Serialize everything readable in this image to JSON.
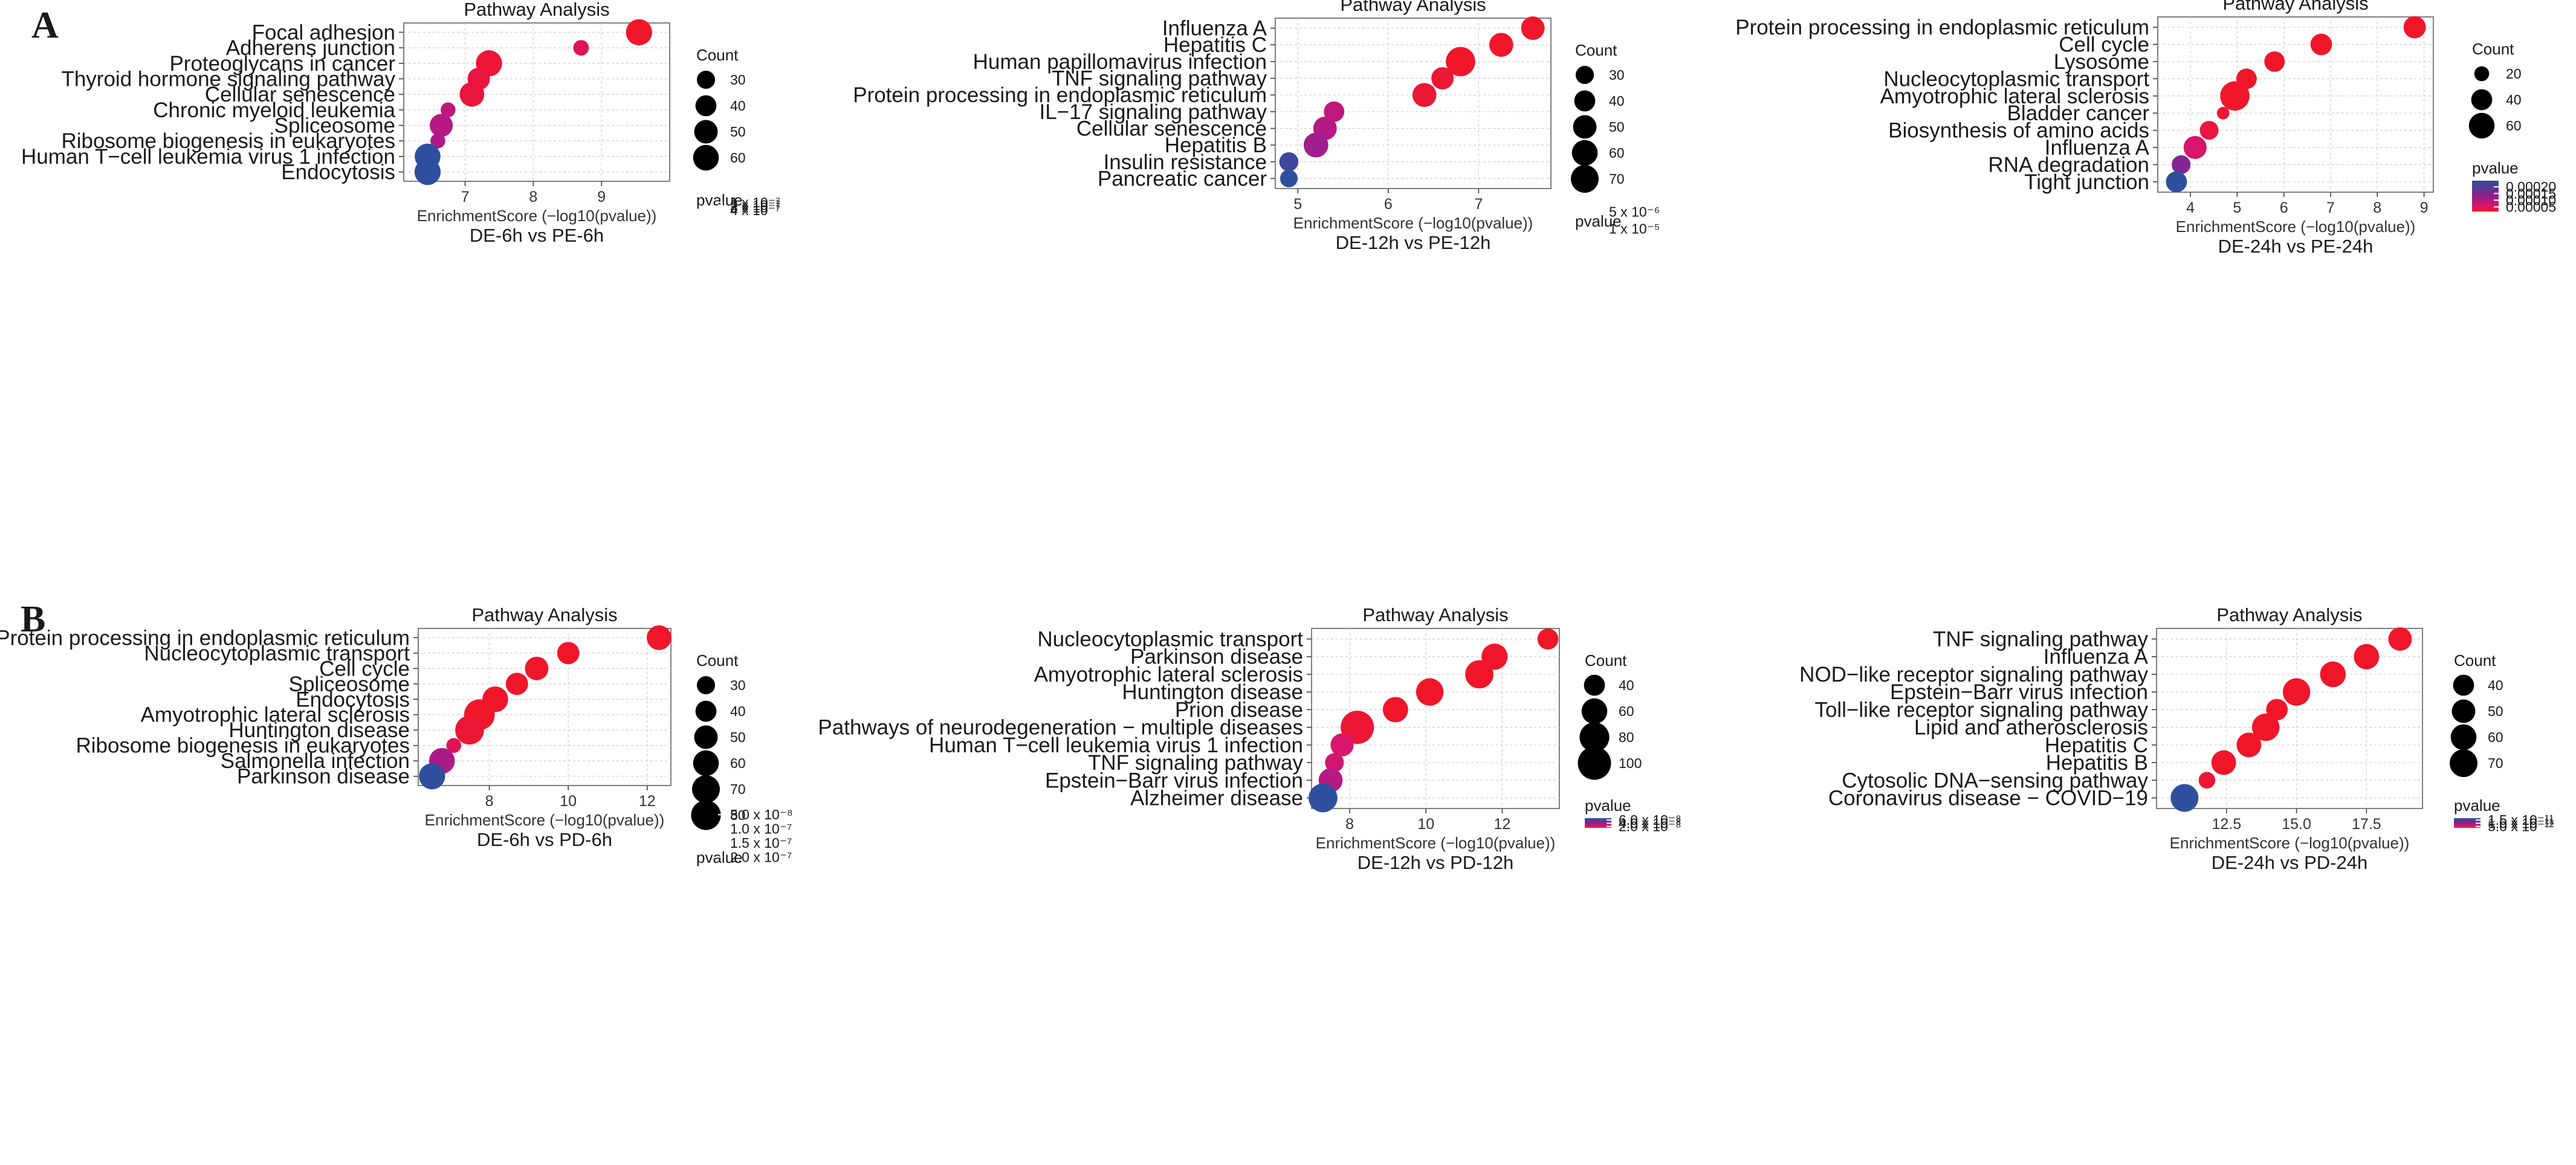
{
  "panels": {
    "A": "A",
    "B": "B"
  },
  "colors": {
    "low_p": "#E8162E",
    "mid_p": "#C0127A",
    "high_p": "#2E4F9E",
    "grid": "#d0d0d0"
  },
  "chart_data": [
    {
      "type": "scatter",
      "panel": "A",
      "title": "Pathway Analysis",
      "xlabel": "EnrichmentScore (−log10(pvalue))",
      "comparison": "DE-6h vs PE-6h",
      "xlim": [
        6.1,
        10.0
      ],
      "xticks": [
        7,
        8,
        9
      ],
      "xtick_labels": [
        "7",
        "8",
        "9"
      ],
      "pathways": [
        "Focal adhesion",
        "Adherens junction",
        "Proteoglycans in cancer",
        "Thyroid hormone signaling pathway",
        "Cellular senescence",
        "Chronic myeloid leukemia",
        "Spliceosome",
        "Ribosome biogenesis in eukaryotes",
        "Human T−cell leukemia virus 1 infection",
        "Endocytosis"
      ],
      "x": [
        9.55,
        8.7,
        7.35,
        7.2,
        7.1,
        6.75,
        6.65,
        6.6,
        6.45,
        6.45
      ],
      "count": [
        62,
        22,
        62,
        45,
        55,
        20,
        48,
        20,
        60,
        62
      ],
      "pvalue_scale": [
        0.0,
        0.0
      ],
      "color_t": [
        0.0,
        0.2,
        0.05,
        0.1,
        0.1,
        0.45,
        0.5,
        0.55,
        1.0,
        1.0
      ],
      "count_legend": {
        "title": "Count",
        "values": [
          30,
          40,
          50,
          60
        ],
        "labels": [
          "30",
          "40",
          "50",
          "60"
        ]
      },
      "pvalue_legend": {
        "title": "pvalue",
        "labels": [
          "4 x 10⁻⁷",
          "3 x 10⁻⁷",
          "2 x 10⁻⁷",
          "1 x 10⁻⁷"
        ]
      }
    },
    {
      "type": "scatter",
      "panel": "A",
      "title": "Pathway Analysis",
      "xlabel": "EnrichmentScore (−log10(pvalue))",
      "comparison": "DE-12h vs PE-12h",
      "xlim": [
        4.75,
        7.8
      ],
      "xticks": [
        5,
        6,
        7
      ],
      "xtick_labels": [
        "5",
        "6",
        "7"
      ],
      "pathways": [
        "Influenza A",
        "Hepatitis C",
        "Human papillomavirus infection",
        "TNF signaling pathway",
        "Protein processing in endoplasmic reticulum",
        "IL−17 signaling pathway",
        "Cellular senescence",
        "Hepatitis B",
        "Insulin resistance",
        "Pancreatic cancer"
      ],
      "x": [
        7.6,
        7.25,
        6.8,
        6.6,
        6.4,
        5.4,
        5.3,
        5.2,
        4.9,
        4.9
      ],
      "count": [
        50,
        52,
        78,
        45,
        52,
        38,
        50,
        55,
        33,
        28
      ],
      "color_t": [
        0.0,
        0.0,
        0.0,
        0.05,
        0.05,
        0.45,
        0.5,
        0.6,
        0.95,
        1.0
      ],
      "count_legend": {
        "title": "Count",
        "values": [
          30,
          40,
          50,
          60,
          70
        ],
        "labels": [
          "30",
          "40",
          "50",
          "60",
          "70"
        ]
      },
      "pvalue_legend": {
        "title": "pvalue",
        "labels": [
          "1 x 10⁻⁵",
          "5 x 10⁻⁶"
        ]
      }
    },
    {
      "type": "scatter",
      "panel": "A",
      "title": "Pathway Analysis",
      "xlabel": "EnrichmentScore (−log10(pvalue))",
      "comparison": "DE-24h vs PE-24h",
      "xlim": [
        3.3,
        9.2
      ],
      "xticks": [
        4,
        5,
        6,
        7,
        8,
        9
      ],
      "xtick_labels": [
        "4",
        "5",
        "6",
        "7",
        "8",
        "9"
      ],
      "pathways": [
        "Protein processing in endoplasmic reticulum",
        "Cell cycle",
        "Lysosome",
        "Nucleocytoplasmic transport",
        "Amyotrophic lateral sclerosis",
        "Bladder cancer",
        "Biosynthesis of amino acids",
        "Influenza A",
        "RNA degradation",
        "Tight junction"
      ],
      "x": [
        8.8,
        6.8,
        5.8,
        5.2,
        4.95,
        4.7,
        4.4,
        4.1,
        3.8,
        3.7
      ],
      "count": [
        45,
        42,
        38,
        38,
        78,
        14,
        32,
        48,
        32,
        40
      ],
      "color_t": [
        0.0,
        0.0,
        0.0,
        0.0,
        0.0,
        0.05,
        0.1,
        0.3,
        0.7,
        1.0
      ],
      "count_legend": {
        "title": "Count",
        "values": [
          20,
          40,
          60
        ],
        "labels": [
          "20",
          "40",
          "60"
        ]
      },
      "pvalue_legend": {
        "title": "pvalue",
        "labels": [
          "0.00020",
          "0.00015",
          "0.00010",
          "0.00005"
        ]
      }
    },
    {
      "type": "scatter",
      "panel": "B",
      "title": "Pathway Analysis",
      "xlabel": "EnrichmentScore (−log10(pvalue))",
      "comparison": "DE-6h vs PD-6h",
      "xlim": [
        6.2,
        12.6
      ],
      "xticks": [
        8,
        10,
        12
      ],
      "xtick_labels": [
        "8",
        "10",
        "12"
      ],
      "pathways": [
        "Protein processing in endoplasmic reticulum",
        "Nucleocytoplasmic transport",
        "Cell cycle",
        "Spliceosome",
        "Endocytosis",
        "Amyotrophic lateral sclerosis",
        "Huntington disease",
        "Ribosome biogenesis in eukaryotes",
        "Salmonella infection",
        "Parkinson disease"
      ],
      "x": [
        12.3,
        10.0,
        9.2,
        8.7,
        8.15,
        7.75,
        7.5,
        7.1,
        6.8,
        6.55
      ],
      "count": [
        55,
        45,
        50,
        45,
        60,
        85,
        75,
        20,
        60,
        62
      ],
      "color_t": [
        0.0,
        0.0,
        0.0,
        0.0,
        0.0,
        0.0,
        0.05,
        0.2,
        0.55,
        1.0
      ],
      "count_legend": {
        "title": "Count",
        "values": [
          30,
          40,
          50,
          60,
          70,
          80
        ],
        "labels": [
          "30",
          "40",
          "50",
          "60",
          "70",
          "80"
        ]
      },
      "pvalue_legend": {
        "title": "pvalue",
        "labels": [
          "2.0 x 10⁻⁷",
          "1.5 x 10⁻⁷",
          "1.0 x 10⁻⁷",
          "5.0 x 10⁻⁸"
        ]
      }
    },
    {
      "type": "scatter",
      "panel": "B",
      "title": "Pathway Analysis",
      "xlabel": "EnrichmentScore (−log10(pvalue))",
      "comparison": "DE-12h vs PD-12h",
      "xlim": [
        7.0,
        13.5
      ],
      "xticks": [
        8,
        10,
        12
      ],
      "xtick_labels": [
        "8",
        "10",
        "12"
      ],
      "pathways": [
        "Nucleocytoplasmic transport",
        "Parkinson disease",
        "Amyotrophic lateral sclerosis",
        "Huntington disease",
        "Prion disease",
        "Pathways of neurodegeneration − multiple diseases",
        "Human T−cell leukemia virus 1 infection",
        "TNF signaling pathway",
        "Epstein−Barr virus infection",
        "Alzheimer disease"
      ],
      "x": [
        13.2,
        11.8,
        11.4,
        10.1,
        9.2,
        8.2,
        7.8,
        7.6,
        7.5,
        7.3
      ],
      "count": [
        40,
        62,
        72,
        68,
        58,
        100,
        48,
        32,
        52,
        75
      ],
      "color_t": [
        0.0,
        0.0,
        0.0,
        0.0,
        0.0,
        0.05,
        0.3,
        0.35,
        0.5,
        1.0
      ],
      "count_legend": {
        "title": "Count",
        "values": [
          40,
          60,
          80,
          100
        ],
        "labels": [
          "40",
          "60",
          "80",
          "100"
        ]
      },
      "pvalue_legend": {
        "title": "pvalue",
        "labels": [
          "6.0 x 10⁻⁸",
          "4.0 x 10⁻⁸",
          "2.0 x 10⁻⁸"
        ]
      }
    },
    {
      "type": "scatter",
      "panel": "B",
      "title": "Pathway Analysis",
      "xlabel": "EnrichmentScore (−log10(pvalue))",
      "comparison": "DE-24h vs PD-24h",
      "xlim": [
        10.0,
        19.5
      ],
      "xticks": [
        12.5,
        15.0,
        17.5
      ],
      "xtick_labels": [
        "12.5",
        "15.0",
        "17.5"
      ],
      "pathways": [
        "TNF signaling pathway",
        "Influenza A",
        "NOD−like receptor signaling pathway",
        "Epstein−Barr virus infection",
        "Toll−like receptor signaling pathway",
        "Lipid and atherosclerosis",
        "Hepatitis C",
        "Hepatitis B",
        "Cytosolic DNA−sensing pathway",
        "Coronavirus disease − COVID−19"
      ],
      "x": [
        18.7,
        17.5,
        16.3,
        15.0,
        14.3,
        13.9,
        13.3,
        12.4,
        11.8,
        11.0
      ],
      "count": [
        50,
        58,
        60,
        68,
        42,
        68,
        55,
        55,
        25,
        70
      ],
      "color_t": [
        0.0,
        0.0,
        0.0,
        0.0,
        0.0,
        0.0,
        0.0,
        0.0,
        0.05,
        1.0
      ],
      "count_legend": {
        "title": "Count",
        "values": [
          40,
          50,
          60,
          70
        ],
        "labels": [
          "40",
          "50",
          "60",
          "70"
        ]
      },
      "pvalue_legend": {
        "title": "pvalue",
        "labels": [
          "1.5 x 10⁻¹¹",
          "1.0 x 10⁻¹¹",
          "5.0 x 10⁻¹²"
        ]
      }
    }
  ]
}
